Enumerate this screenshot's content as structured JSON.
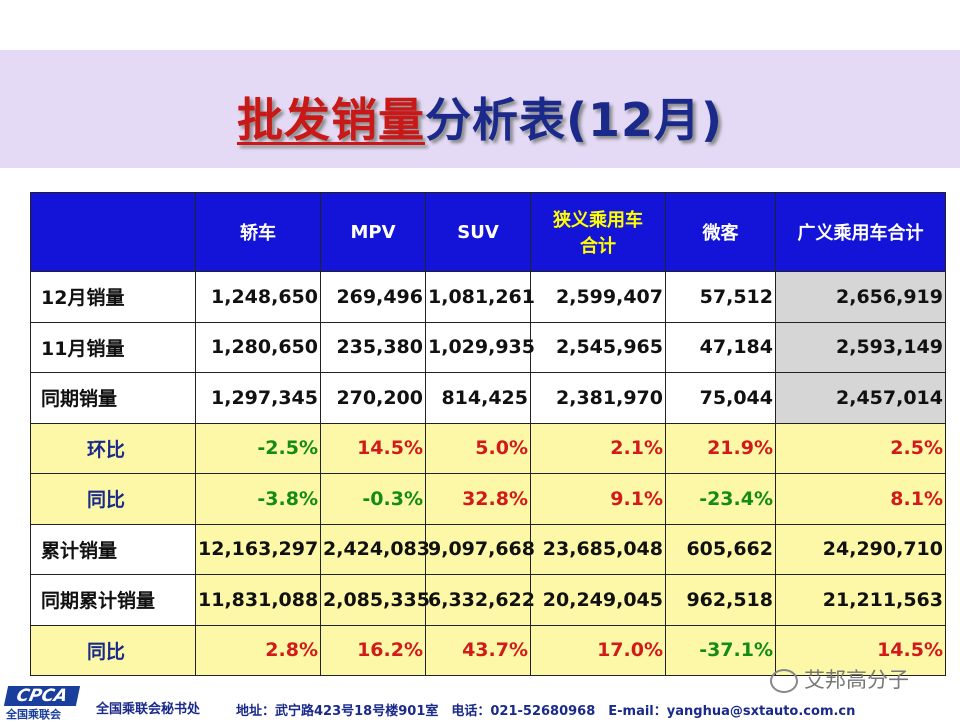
{
  "title": {
    "highlight": "批发销量",
    "rest": "分析表(12月)"
  },
  "table": {
    "headers": [
      "",
      "轿车",
      "MPV",
      "SUV",
      "狭义乘用车\n合计",
      "微客",
      "广义乘用车合计"
    ],
    "rows": [
      {
        "label": "12月销量",
        "values": [
          "1,248,650",
          "269,496",
          "1,081,261",
          "2,599,407",
          "57,512",
          "2,656,919"
        ],
        "style": "white"
      },
      {
        "label": "11月销量",
        "values": [
          "1,280,650",
          "235,380",
          "1,029,935",
          "2,545,965",
          "47,184",
          "2,593,149"
        ],
        "style": "white"
      },
      {
        "label": "同期销量",
        "values": [
          "1,297,345",
          "270,200",
          "814,425",
          "2,381,970",
          "75,044",
          "2,457,014"
        ],
        "style": "white"
      },
      {
        "label": "环比",
        "values": [
          "-2.5%",
          "14.5%",
          "5.0%",
          "2.1%",
          "21.9%",
          "2.5%"
        ],
        "style": "yellow"
      },
      {
        "label": "同比",
        "values": [
          "-3.8%",
          "-0.3%",
          "32.8%",
          "9.1%",
          "-23.4%",
          "8.1%"
        ],
        "style": "yellow"
      },
      {
        "label": "累计销量",
        "values": [
          "12,163,297",
          "2,424,083",
          "9,097,668",
          "23,685,048",
          "605,662",
          "24,290,710"
        ],
        "style": "white-y"
      },
      {
        "label": "同期累计销量",
        "values": [
          "11,831,088",
          "2,085,335",
          "6,332,622",
          "20,249,045",
          "962,518",
          "21,211,563"
        ],
        "style": "white-y"
      },
      {
        "label": "同比",
        "values": [
          "2.8%",
          "16.2%",
          "43.7%",
          "17.0%",
          "-37.1%",
          "14.5%"
        ],
        "style": "yellow"
      }
    ]
  },
  "footer": {
    "logo": "CPCA",
    "logo_sub": "全国乘联会",
    "org": "全国乘联会秘书处",
    "contact": "地址：武宁路423号18号楼901室　电话：021-52680968　E-mail：yanghua@sxtauto.com.cn"
  },
  "watermark": "艾邦高分子",
  "colors": {
    "header_bg": "#1414d8",
    "header_text": "#ffffff",
    "header_highlight": "#ffff00",
    "yellow_row": "#fcf8a8",
    "grey_cell": "#d6d6d6",
    "positive_pct": "#d21a1a",
    "negative_pct": "#148c14",
    "title_highlight": "#c81818",
    "title_text": "#1b2a8a"
  }
}
